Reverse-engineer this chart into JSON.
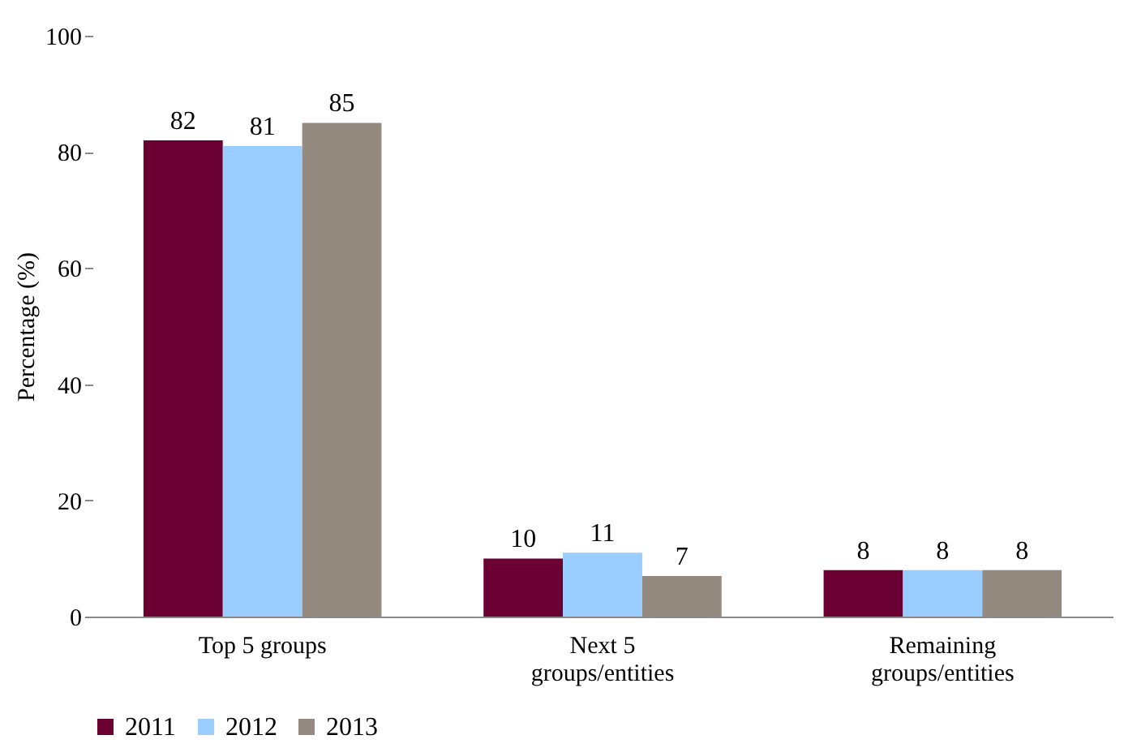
{
  "chart_data": {
    "type": "bar",
    "ylabel": "Percentage (%)",
    "categories": [
      "Top 5 groups",
      "Next 5 groups/entities",
      "Remaining groups/entities"
    ],
    "series": [
      {
        "name": "2011",
        "color": "#6b0033",
        "values": [
          82,
          10,
          8
        ]
      },
      {
        "name": "2012",
        "color": "#99ccff",
        "values": [
          81,
          11,
          8
        ]
      },
      {
        "name": "2013",
        "color": "#948a80",
        "values": [
          85,
          7,
          8
        ]
      }
    ],
    "ylim": [
      0,
      100
    ],
    "yticks": [
      0,
      20,
      40,
      60,
      80,
      100
    ],
    "data_labels": true,
    "legend": "bottom",
    "grid": false
  }
}
